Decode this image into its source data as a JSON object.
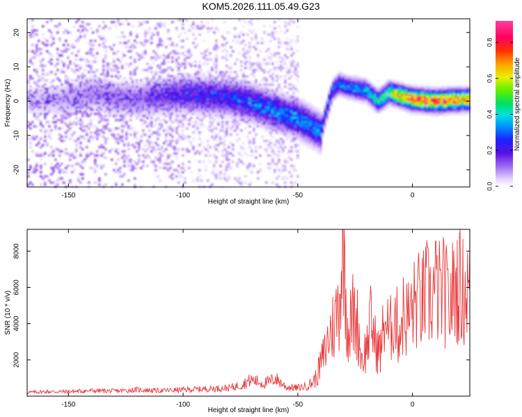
{
  "title": "KOM5.2026.111.05.49.G23",
  "chart_data": [
    {
      "type": "heatmap",
      "xlabel": "Height of straight line (km)",
      "ylabel": "Frequency (Hz)",
      "xlim": [
        -168,
        25
      ],
      "ylim": [
        -25,
        24
      ],
      "xticks": [
        -150,
        -100,
        -50,
        0
      ],
      "yticks": [
        -20,
        -10,
        0,
        10,
        20
      ],
      "colorbar": {
        "label": "Normalized spectral amplitude",
        "range": [
          0,
          0.92
        ],
        "ticks": [
          "0.0",
          "0.2",
          "0.4",
          "0.6",
          "0.8"
        ],
        "tick_values": [
          0,
          0.2,
          0.4,
          0.6,
          0.8
        ]
      },
      "ridge": {
        "description_points": [
          [
            -168,
            0
          ],
          [
            -150,
            0.5
          ],
          [
            -140,
            2.5
          ],
          [
            -130,
            1
          ],
          [
            -120,
            0.5
          ],
          [
            -110,
            1.5
          ],
          [
            -100,
            2
          ],
          [
            -90,
            1.5
          ],
          [
            -80,
            1
          ],
          [
            -70,
            -0.5
          ],
          [
            -60,
            -3
          ],
          [
            -50,
            -5
          ],
          [
            -45,
            -7
          ],
          [
            -40,
            -9
          ],
          [
            -38,
            -4
          ],
          [
            -35,
            3
          ],
          [
            -32,
            5
          ],
          [
            -28,
            4
          ],
          [
            -20,
            3
          ],
          [
            -15,
            0
          ],
          [
            -10,
            2.5
          ],
          [
            -5,
            1.5
          ],
          [
            0,
            0.5
          ],
          [
            10,
            0
          ],
          [
            25,
            0.5
          ]
        ],
        "amplitude_points": [
          [
            -168,
            0.05
          ],
          [
            -150,
            0.08
          ],
          [
            -140,
            0.1
          ],
          [
            -120,
            0.12
          ],
          [
            -100,
            0.2
          ],
          [
            -80,
            0.25
          ],
          [
            -60,
            0.3
          ],
          [
            -45,
            0.35
          ],
          [
            -35,
            0.3
          ],
          [
            -20,
            0.4
          ],
          [
            -10,
            0.55
          ],
          [
            -5,
            0.8
          ],
          [
            0,
            0.85
          ],
          [
            10,
            0.88
          ],
          [
            25,
            0.75
          ]
        ]
      }
    },
    {
      "type": "line",
      "xlabel": "Height of straight line (km)",
      "ylabel": "SNR (10 * v/v)",
      "xlim": [
        -168,
        25
      ],
      "ylim": [
        0,
        9200
      ],
      "xticks": [
        -150,
        -100,
        -50,
        0
      ],
      "yticks": [
        2000,
        4000,
        6000,
        8000
      ],
      "series": [
        {
          "color": "#e8383a",
          "x": [
            -168,
            -160,
            -150,
            -140,
            -130,
            -120,
            -110,
            -100,
            -90,
            -80,
            -75,
            -72,
            -70,
            -65,
            -62,
            -60,
            -55,
            -50,
            -45,
            -42,
            -40,
            -38,
            -36,
            -34,
            -32,
            -31,
            -30,
            -29,
            -28,
            -26,
            -24,
            -22,
            -20,
            -18,
            -16,
            -14,
            -12,
            -10,
            -8,
            -6,
            -4,
            -2,
            0,
            2,
            4,
            6,
            8,
            10,
            12,
            14,
            16,
            18,
            20,
            22,
            25
          ],
          "y": [
            200,
            250,
            250,
            300,
            280,
            350,
            300,
            350,
            400,
            450,
            600,
            800,
            900,
            700,
            800,
            1000,
            500,
            450,
            600,
            1000,
            1800,
            2500,
            3500,
            4000,
            5200,
            7000,
            9200,
            5500,
            3500,
            4500,
            4000,
            2000,
            2700,
            4200,
            2800,
            2400,
            4400,
            3300,
            4700,
            3500,
            4500,
            4300,
            4800,
            5300,
            5100,
            5700,
            5300,
            6000,
            5600,
            5800,
            4900,
            5900,
            6200,
            5800,
            6000
          ]
        }
      ]
    }
  ]
}
